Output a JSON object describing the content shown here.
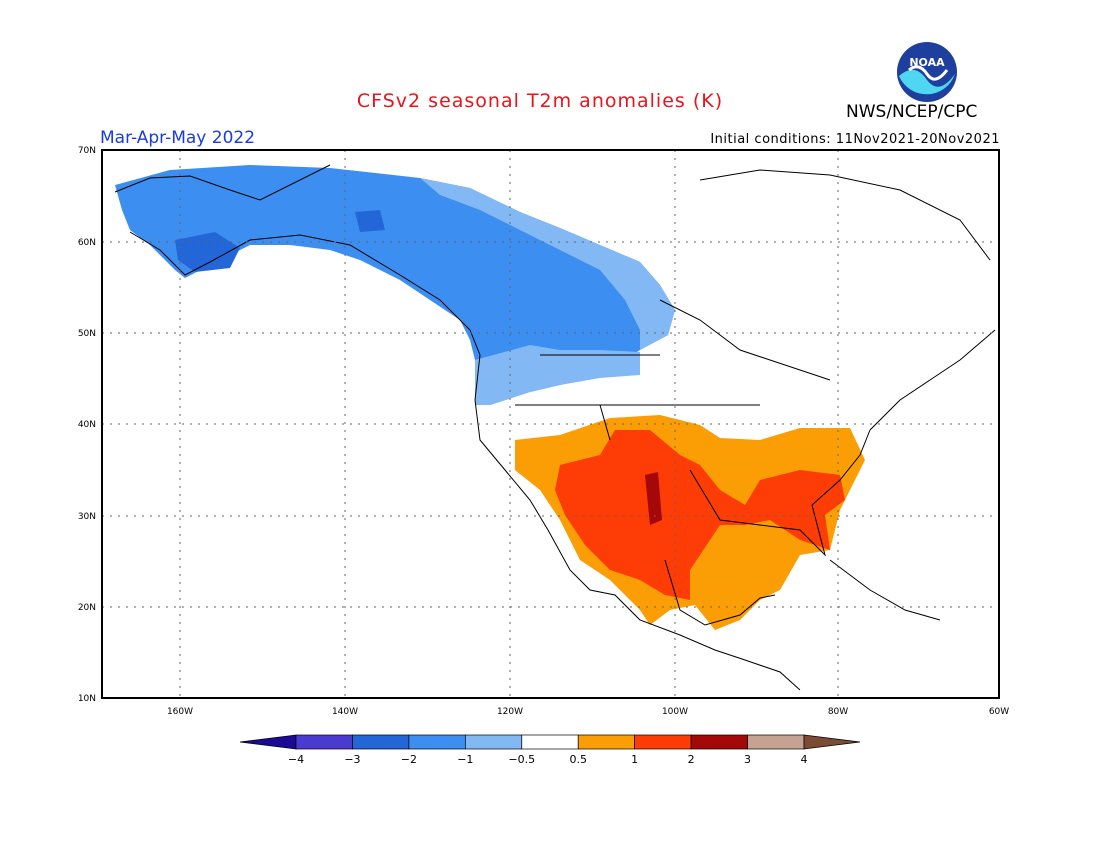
{
  "title": "CFSv2 seasonal T2m anomalies (K)",
  "season": "Mar-Apr-May 2022",
  "organization": "NWS/NCEP/CPC",
  "logo_text": "NOAA",
  "initial_conditions": "Initial conditions: 11Nov2021-20Nov2021",
  "colors": {
    "title": "#e8141c",
    "season": "#1a3be0",
    "land_outline": "#000000"
  },
  "lat_labels": [
    "70N",
    "60N",
    "50N",
    "40N",
    "30N",
    "20N",
    "10N"
  ],
  "lon_labels": [
    "160W",
    "140W",
    "120W",
    "100W",
    "80W",
    "60W"
  ],
  "colorbar": {
    "bins": [
      {
        "color": "#1a0a96"
      },
      {
        "color": "#4a3ad2"
      },
      {
        "color": "#2266d8"
      },
      {
        "color": "#3c8ef0"
      },
      {
        "color": "#82b8f4"
      },
      {
        "color": "#ffffff"
      },
      {
        "color": "#fb9d05"
      },
      {
        "color": "#fe3c05"
      },
      {
        "color": "#a50808"
      },
      {
        "color": "#c6a292"
      },
      {
        "color": "#7a4b35"
      }
    ],
    "tick_labels": [
      "-4",
      "-3",
      "-2",
      "-1",
      "-0.5",
      "0.5",
      "1",
      "2",
      "3",
      "4"
    ]
  }
}
